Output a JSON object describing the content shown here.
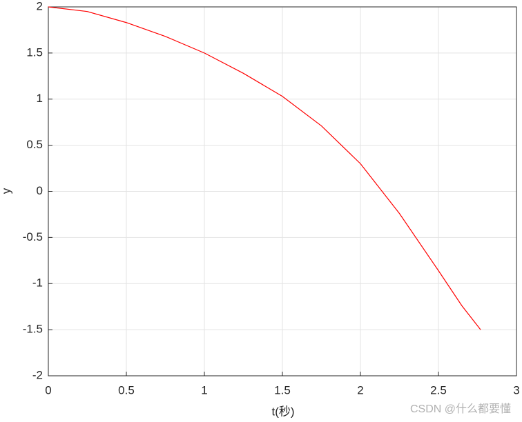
{
  "chart_data": {
    "type": "line",
    "x_label": "t(秒)",
    "y_label": "y",
    "x": [
      0,
      0.25,
      0.5,
      0.75,
      1,
      1.25,
      1.5,
      1.75,
      2,
      2.25,
      2.5,
      2.65,
      2.77
    ],
    "values": [
      2,
      1.95,
      1.83,
      1.68,
      1.5,
      1.28,
      1.03,
      0.71,
      0.3,
      -0.24,
      -0.86,
      -1.24,
      -1.5
    ],
    "color": "#ff0000",
    "xlim": [
      0,
      3
    ],
    "xticks": [
      0,
      0.5,
      1,
      1.5,
      2,
      2.5,
      3
    ],
    "ylim": [
      -2,
      2
    ],
    "yticks": [
      -2,
      -1.5,
      -1,
      -0.5,
      0,
      0.5,
      1,
      1.5,
      2
    ],
    "grid": true,
    "watermark": "CSDN @什么都要懂"
  }
}
